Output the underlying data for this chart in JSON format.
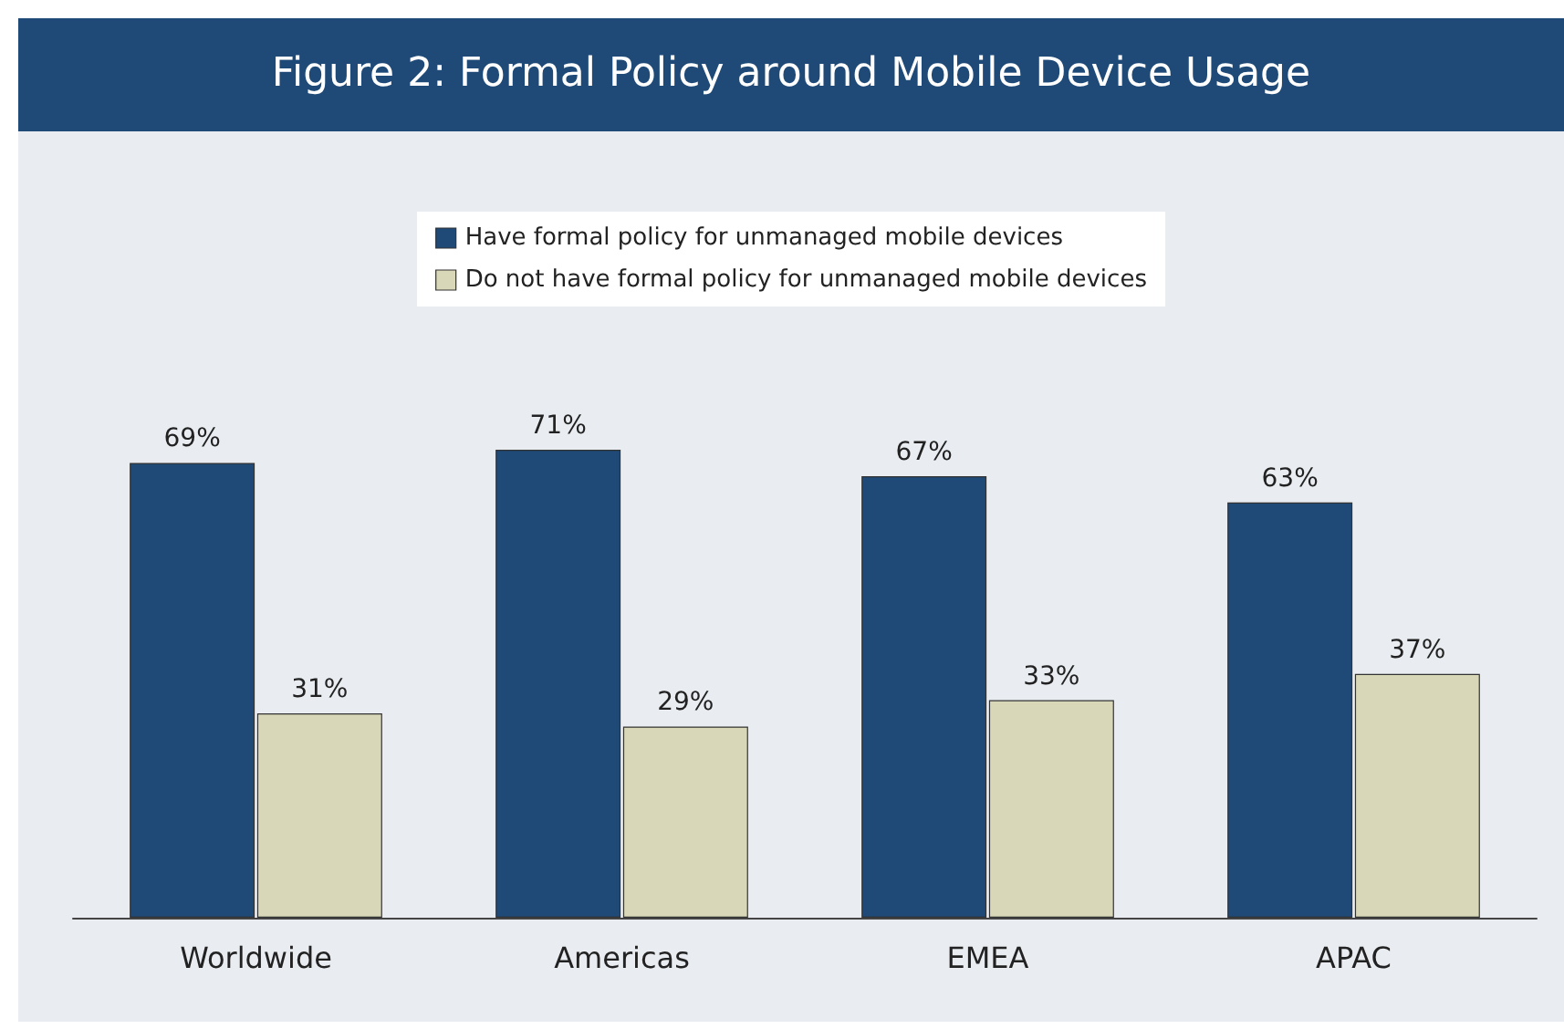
{
  "chart_data": {
    "type": "bar",
    "title": "Figure 2: Formal Policy around Mobile Device Usage",
    "categories": [
      "Worldwide",
      "Americas",
      "EMEA",
      "APAC"
    ],
    "series": [
      {
        "name": "Have formal policy for unmanaged mobile devices",
        "color": "#1f4a77",
        "values": [
          69,
          71,
          67,
          63
        ],
        "value_labels": [
          "69%",
          "71%",
          "67%",
          "63%"
        ]
      },
      {
        "name": "Do not have formal policy for unmanaged mobile devices",
        "color": "#d8d7b7",
        "values": [
          31,
          29,
          33,
          37
        ],
        "value_labels": [
          "31%",
          "29%",
          "33%",
          "37%"
        ]
      }
    ],
    "legend": "top"
  }
}
